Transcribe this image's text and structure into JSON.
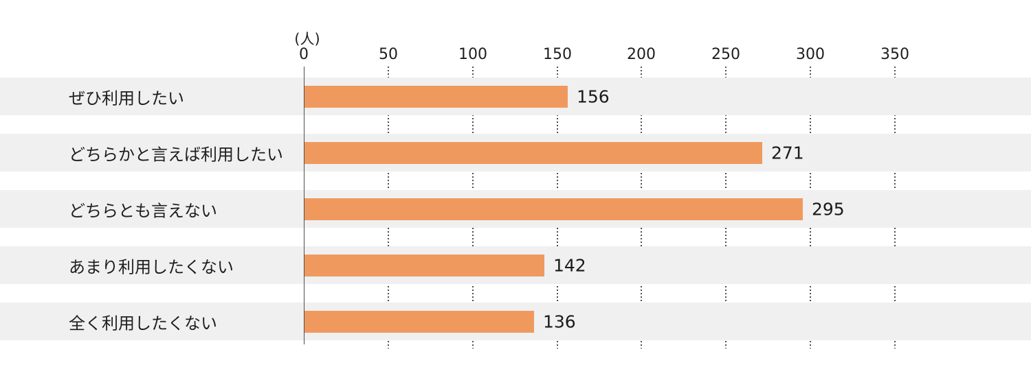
{
  "chart_data": {
    "type": "bar",
    "orientation": "horizontal",
    "unit_label": "(人)",
    "categories": [
      "ぜひ利用したい",
      "どちらかと言えば利用したい",
      "どちらとも言えない",
      "あまり利用したくない",
      "全く利用したくない"
    ],
    "values": [
      156,
      271,
      295,
      142,
      136
    ],
    "x_ticks": [
      0,
      50,
      100,
      150,
      200,
      250,
      300,
      350
    ],
    "xlim": [
      0,
      430
    ],
    "grid": "dotted-vertical-in-gaps",
    "legend": "none",
    "bar_color": "#f0995f",
    "row_band_color": "#f0f0f0",
    "text_color": "#1e1e1e",
    "axis_line_color": "#4d4d4d"
  }
}
